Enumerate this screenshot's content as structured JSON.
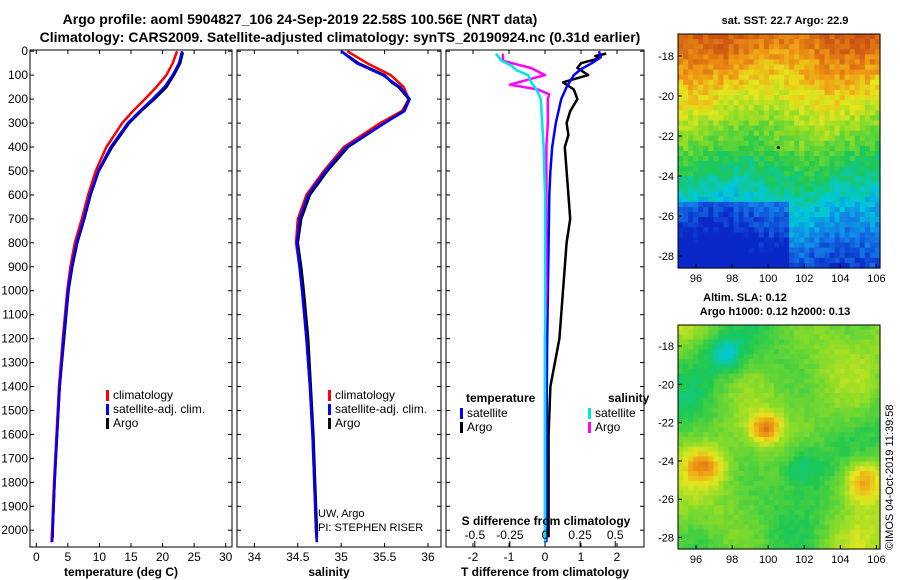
{
  "title": {
    "line1": "Argo profile: aoml 5904827_106 24-Sep-2019 22.58S 100.56E (NRT data)",
    "line2": "Climatology: CARS2009. Satellite-adjusted climatology: synTS_20190924.nc (0.31d earlier)"
  },
  "colors": {
    "climatology": "#ff0000",
    "satellite": "#0000ff",
    "argo": "#000000",
    "satellite_salinity": "#00e5e5",
    "argo_salinity": "#ff00ff"
  },
  "legends": {
    "temperature_panel": [
      "climatology",
      "satellite-adj. clim.",
      "Argo"
    ],
    "salinity_panel": [
      "climatology",
      "satellite-adj. clim.",
      "Argo"
    ],
    "difference_panel": {
      "temperature_header": "temperature",
      "salinity_header": "salinity",
      "temperature_items": [
        "satellite",
        "Argo"
      ],
      "salinity_items": [
        "satellite",
        "Argo"
      ]
    }
  },
  "annotations": {
    "salinity_note_1": "UW, Argo",
    "salinity_note_2": "PI: STEPHEN RISER",
    "s_diff_axis_label": "S difference from climatology",
    "watermark": "©IMOS 04-Oct-2019 11:39:58"
  },
  "sst_map": {
    "title": "sat. SST: 22.7 Argo: 22.9",
    "x_ticks": [
      "96",
      "98",
      "100",
      "102",
      "104",
      "106"
    ],
    "y_ticks": [
      "-18",
      "-20",
      "-22",
      "-24",
      "-26",
      "-28"
    ]
  },
  "sla_map": {
    "title_line1": "Altim. SLA: 0.12",
    "title_line2": "Argo h1000: 0.12 h2000: 0.13",
    "x_ticks": [
      "96",
      "98",
      "100",
      "102",
      "104",
      "106"
    ],
    "y_ticks": [
      "-18",
      "-20",
      "-22",
      "-24",
      "-26",
      "-28"
    ]
  },
  "chart_data": [
    {
      "type": "line",
      "title": "temperature",
      "xlabel": "temperature (deg C)",
      "ylabel": "",
      "xlim": [
        -1,
        31
      ],
      "ylim": [
        2070,
        -5
      ],
      "y_ticks": [
        0,
        100,
        200,
        300,
        400,
        500,
        600,
        700,
        800,
        900,
        1000,
        1100,
        1200,
        1300,
        1400,
        1500,
        1600,
        1700,
        1800,
        1900,
        2000
      ],
      "x_tick_values": [
        0,
        5,
        10,
        15,
        20,
        25,
        30
      ],
      "x_tick_labels": [
        "0",
        "5",
        "10",
        "15",
        "20",
        "25",
        "30"
      ],
      "series": [
        {
          "name": "climatology",
          "depth": [
            0,
            50,
            100,
            150,
            200,
            250,
            300,
            400,
            500,
            600,
            700,
            800,
            900,
            1000,
            1200,
            1400,
            1600,
            1800,
            2000,
            2050
          ],
          "values": [
            22.3,
            21.6,
            20.6,
            19.0,
            17.2,
            15.3,
            13.6,
            11.1,
            9.4,
            8.2,
            7.2,
            6.1,
            5.4,
            4.9,
            4.2,
            3.6,
            3.2,
            2.8,
            2.5,
            2.4
          ]
        },
        {
          "name": "satellite-adj. clim.",
          "depth": [
            0,
            50,
            100,
            150,
            200,
            250,
            300,
            400,
            500,
            600,
            700,
            800,
            900,
            1000,
            1200,
            1400,
            1600,
            1800,
            2000,
            2050
          ],
          "values": [
            23.1,
            22.6,
            21.6,
            20.3,
            18.4,
            16.4,
            14.5,
            11.8,
            9.8,
            8.5,
            7.5,
            6.4,
            5.6,
            5.0,
            4.3,
            3.7,
            3.3,
            2.9,
            2.6,
            2.5
          ]
        },
        {
          "name": "Argo",
          "depth": [
            5,
            50,
            100,
            150,
            200,
            250,
            300,
            400,
            500,
            600,
            700,
            800,
            900,
            1000,
            1200,
            1400,
            1600,
            1800,
            2000,
            2030
          ],
          "values": [
            23.2,
            22.8,
            21.8,
            20.6,
            18.7,
            16.6,
            14.7,
            12.0,
            9.9,
            8.6,
            7.6,
            6.5,
            5.7,
            5.1,
            4.4,
            3.7,
            3.3,
            2.9,
            2.6,
            2.6
          ]
        }
      ]
    },
    {
      "type": "line",
      "title": "salinity",
      "xlabel": "salinity",
      "ylabel": "",
      "xlim": [
        33.8,
        36.15
      ],
      "ylim": [
        2070,
        -5
      ],
      "x_tick_values": [
        34,
        34.5,
        35,
        35.5,
        36
      ],
      "x_tick_labels": [
        "34",
        "34.5",
        "35",
        "35.5",
        "36"
      ],
      "series": [
        {
          "name": "climatology",
          "depth": [
            0,
            50,
            100,
            150,
            200,
            250,
            300,
            400,
            500,
            600,
            700,
            800,
            900,
            1000,
            1200,
            1400,
            1600,
            1800,
            2000,
            2050
          ],
          "values": [
            35.07,
            35.3,
            35.57,
            35.72,
            35.78,
            35.7,
            35.45,
            35.03,
            34.8,
            34.6,
            34.5,
            34.48,
            34.52,
            34.55,
            34.6,
            34.64,
            34.67,
            34.69,
            34.71,
            34.72
          ]
        },
        {
          "name": "satellite-adj. clim.",
          "depth": [
            0,
            50,
            100,
            150,
            200,
            250,
            300,
            400,
            500,
            600,
            700,
            800,
            900,
            1000,
            1200,
            1400,
            1600,
            1800,
            2000,
            2050
          ],
          "values": [
            35.0,
            35.18,
            35.48,
            35.68,
            35.79,
            35.73,
            35.5,
            35.06,
            34.82,
            34.62,
            34.52,
            34.49,
            34.52,
            34.55,
            34.6,
            34.64,
            34.67,
            34.69,
            34.71,
            34.72
          ]
        },
        {
          "name": "Argo",
          "depth": [
            5,
            50,
            100,
            130,
            150,
            200,
            250,
            300,
            400,
            500,
            600,
            700,
            800,
            900,
            1000,
            1200,
            1400,
            1600,
            1800,
            2000,
            2030
          ],
          "values": [
            35.02,
            35.2,
            35.5,
            35.58,
            35.66,
            35.78,
            35.72,
            35.5,
            35.08,
            34.84,
            34.64,
            34.54,
            34.5,
            34.54,
            34.57,
            34.62,
            34.65,
            34.68,
            34.7,
            34.72,
            34.72
          ]
        }
      ]
    },
    {
      "type": "line",
      "title": "difference from climatology",
      "xlabel": "T difference from climatology",
      "x2label": "S difference from climatology",
      "xlim": [
        -2.75,
        2.75
      ],
      "ylim": [
        2070,
        -5
      ],
      "x_tick_values": [
        -2,
        -1,
        0,
        1,
        2
      ],
      "x_tick_labels": [
        "-2",
        "-1",
        "0",
        "1",
        "2"
      ],
      "s_tick_values": [
        -0.5,
        -0.25,
        0,
        0.25,
        0.5
      ],
      "s_tick_labels": [
        "-0.5",
        "-0.25",
        "0",
        "0.25",
        "0.5"
      ],
      "series": [
        {
          "name": "temperature satellite",
          "depth": [
            0,
            25,
            50,
            75,
            100,
            150,
            200,
            300,
            400,
            500,
            600,
            800,
            1000,
            1200,
            1400,
            1600,
            1800,
            2000,
            2050
          ],
          "values": [
            1.5,
            1.55,
            1.3,
            1.0,
            0.8,
            0.6,
            0.45,
            0.3,
            0.2,
            0.15,
            0.12,
            0.1,
            0.08,
            0.06,
            0.05,
            0.05,
            0.04,
            0.04,
            0.04
          ]
        },
        {
          "name": "temperature Argo",
          "depth": [
            10,
            20,
            30,
            50,
            70,
            100,
            130,
            160,
            200,
            250,
            300,
            350,
            400,
            500,
            600,
            700,
            800,
            900,
            1000,
            1100,
            1200,
            1400,
            1600,
            1800,
            2000,
            2030
          ],
          "values": [
            1.7,
            1.4,
            1.5,
            1.0,
            0.9,
            1.2,
            0.5,
            0.8,
            0.9,
            0.7,
            0.6,
            0.65,
            0.55,
            0.6,
            0.65,
            0.7,
            0.6,
            0.55,
            0.5,
            0.45,
            0.4,
            0.15,
            0.1,
            0.1,
            0.1,
            0.1
          ]
        },
        {
          "name": "salinity satellite",
          "depth": [
            10,
            40,
            60,
            80,
            100,
            130,
            160,
            200,
            300,
            400,
            600,
            800,
            1000,
            1200,
            1400,
            1600,
            1800,
            2000,
            2050
          ],
          "values": [
            -0.35,
            -0.31,
            -0.24,
            -0.2,
            -0.12,
            -0.1,
            -0.06,
            -0.03,
            -0.02,
            -0.01,
            0.0,
            0.0,
            0.0,
            0.0,
            0.0,
            0.0,
            0.0,
            0.0,
            0.0
          ]
        },
        {
          "name": "salinity Argo",
          "depth": [
            10,
            40,
            70,
            100,
            140,
            160,
            180,
            200,
            250,
            300,
            400,
            500,
            600,
            800,
            1000,
            1200,
            1400,
            1600,
            1800,
            2000,
            2030
          ],
          "values": [
            -0.3,
            -0.3,
            -0.1,
            0.0,
            -0.25,
            -0.05,
            0.03,
            0.02,
            0.02,
            0.02,
            0.01,
            0.01,
            0.01,
            0.01,
            0.01,
            0.0,
            0.0,
            0.0,
            0.0,
            0.0,
            0.0
          ]
        }
      ]
    }
  ]
}
